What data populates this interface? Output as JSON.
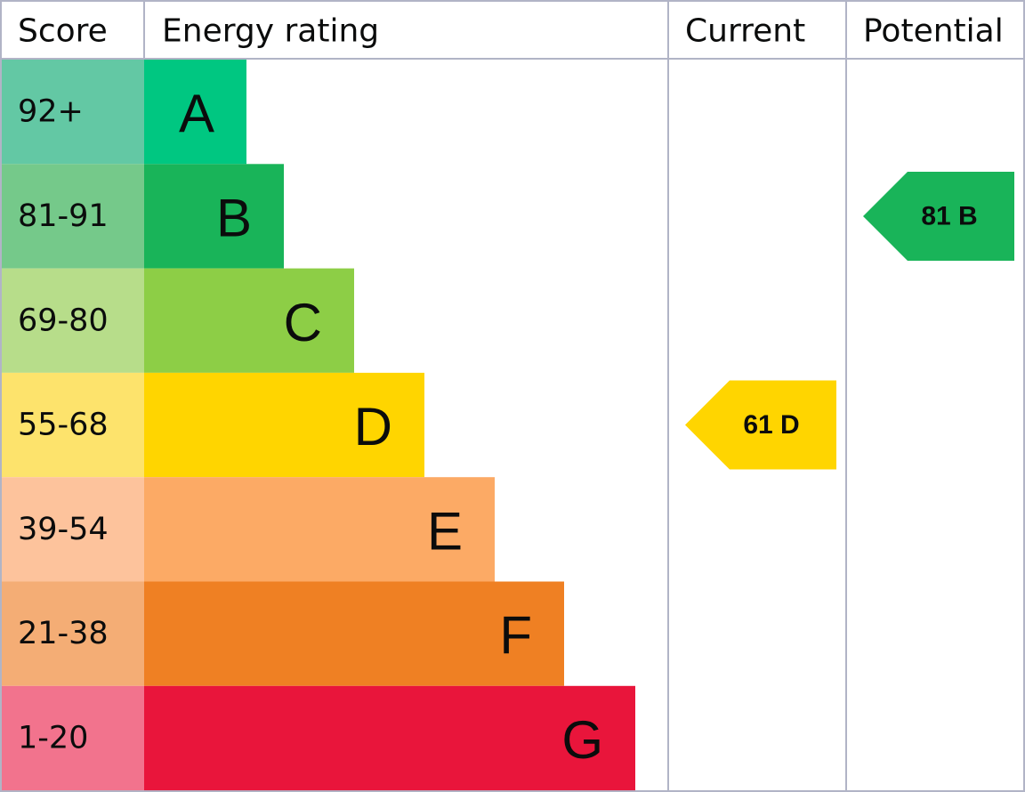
{
  "header": {
    "score": "Score",
    "rating": "Energy rating",
    "current": "Current",
    "potential": "Potential"
  },
  "rows": [
    {
      "score": "92+",
      "band": "A",
      "score_color": "#63c8a4",
      "band_color": "#00c781"
    },
    {
      "score": "81-91",
      "band": "B",
      "score_color": "#75c98a",
      "band_color": "#19b459",
      "potential": "81 B"
    },
    {
      "score": "69-80",
      "band": "C",
      "score_color": "#b7dd8a",
      "band_color": "#8dce46"
    },
    {
      "score": "55-68",
      "band": "D",
      "score_color": "#fde36c",
      "band_color": "#ffd500",
      "current": "61 D"
    },
    {
      "score": "39-54",
      "band": "E",
      "score_color": "#fdc39c",
      "band_color": "#fcaa65"
    },
    {
      "score": "21-38",
      "band": "F",
      "score_color": "#f4ad75",
      "band_color": "#ef8023"
    },
    {
      "score": "1-20",
      "band": "G",
      "score_color": "#f2738d",
      "band_color": "#e9153b"
    }
  ]
}
